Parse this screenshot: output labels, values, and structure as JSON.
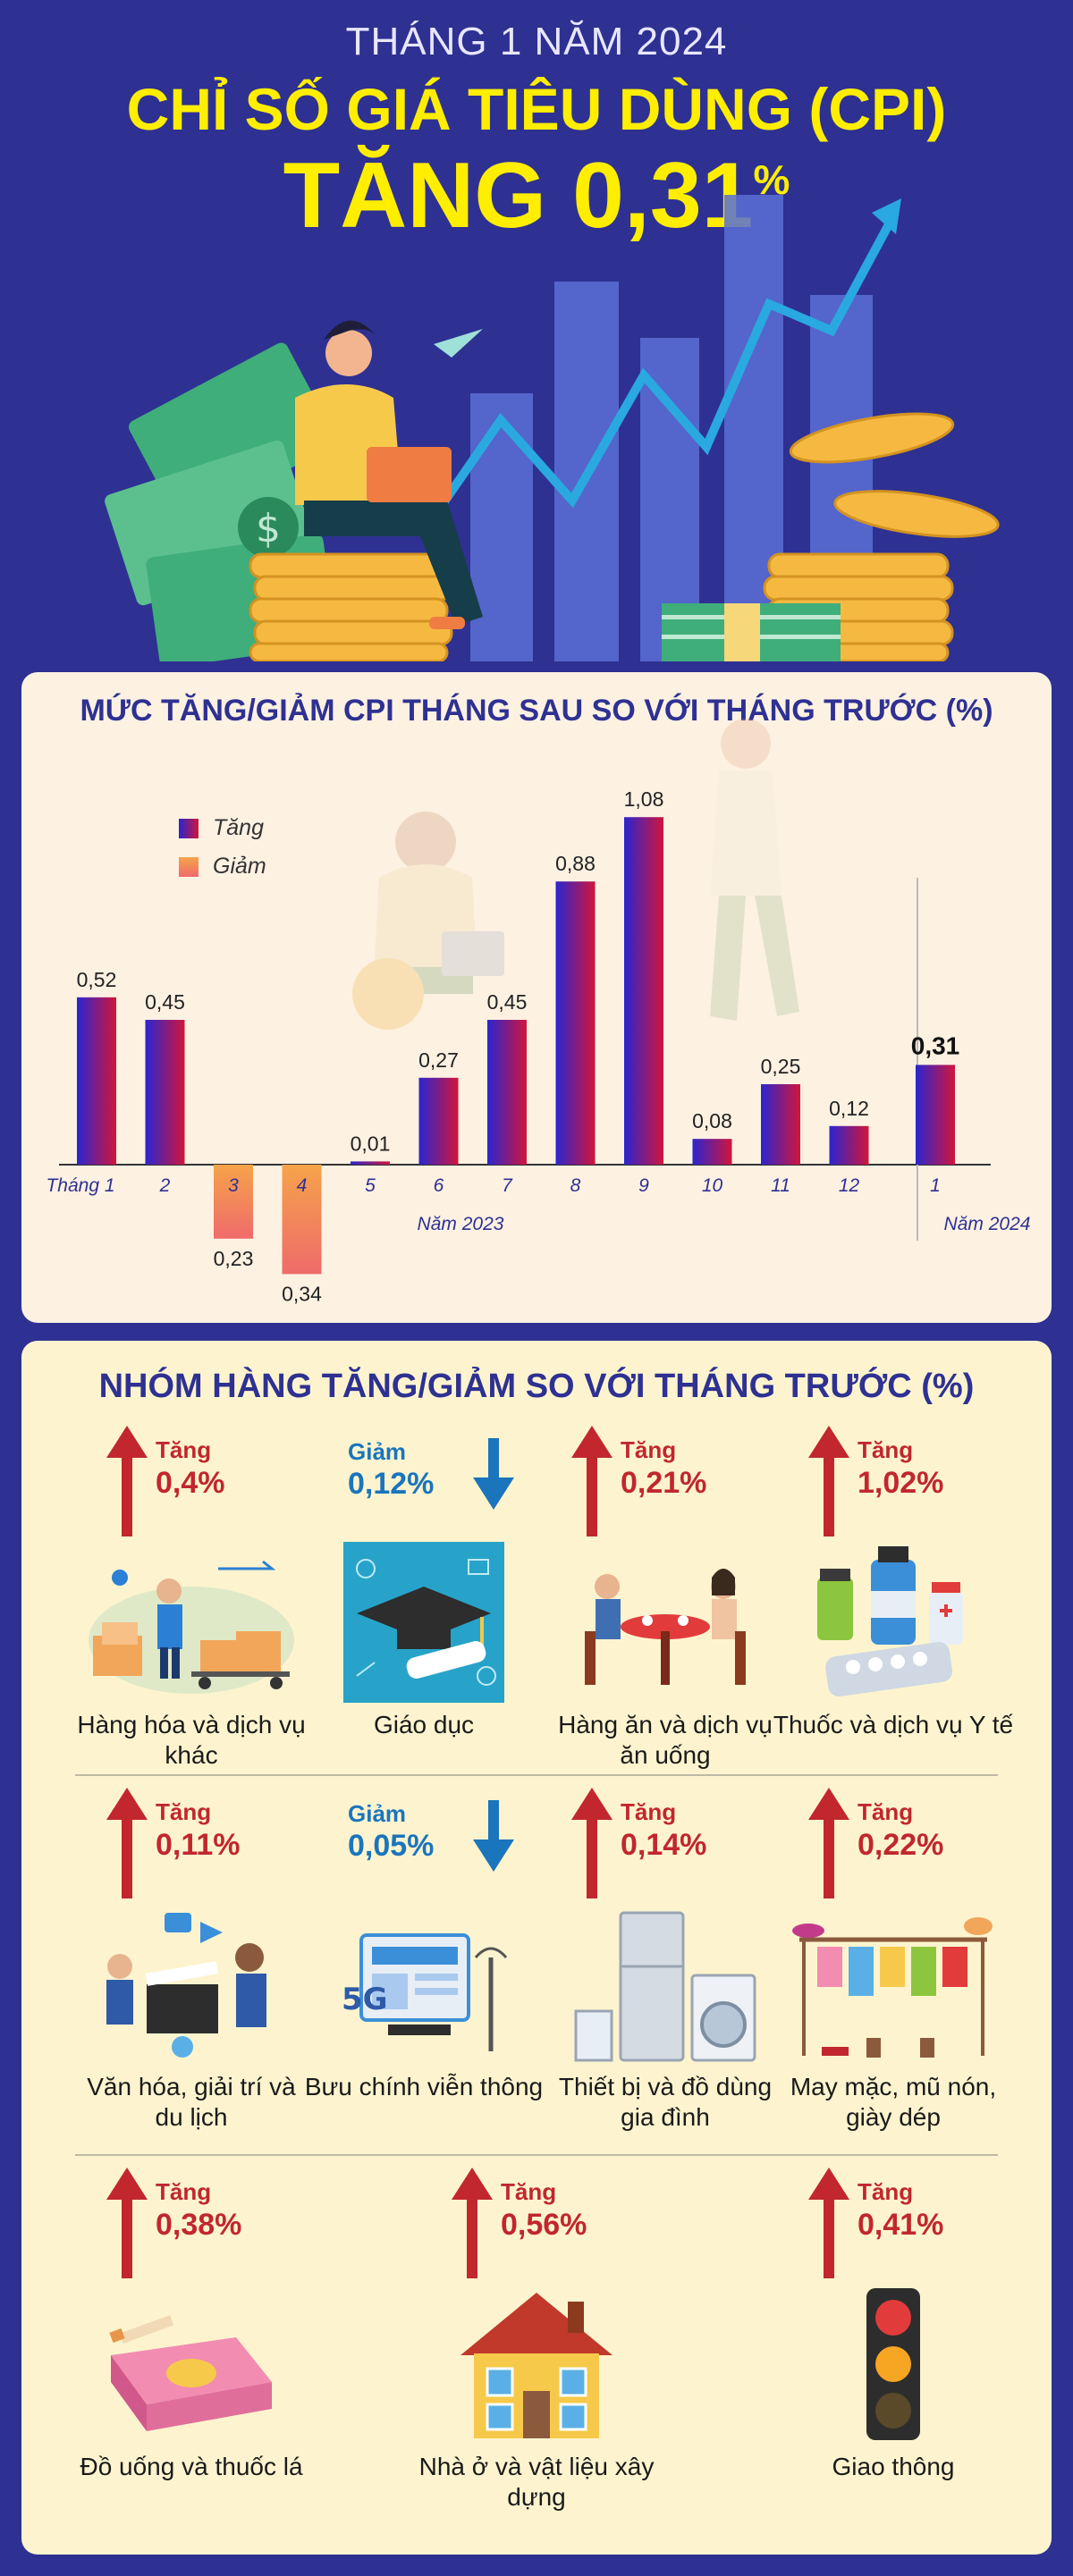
{
  "header": {
    "month_line": "THÁNG 1 NĂM 2024",
    "title_line": "CHỈ SỐ GIÁ TIÊU DÙNG (CPI)",
    "value_line": "TĂNG 0,31",
    "value_unit": "%"
  },
  "chart_section": {
    "title": "MỨC TĂNG/GIẢM CPI THÁNG SAU SO VỚI THÁNG TRƯỚC (%)"
  },
  "chart_data": {
    "type": "bar",
    "title": "MỨC TĂNG/GIẢM CPI THÁNG SAU SO VỚI THÁNG TRƯỚC (%)",
    "categories": [
      "Tháng 1",
      "2",
      "3",
      "4",
      "5",
      "6",
      "7",
      "8",
      "9",
      "10",
      "11",
      "12",
      "1"
    ],
    "values": [
      0.52,
      0.45,
      -0.23,
      -0.34,
      0.01,
      0.27,
      0.45,
      0.88,
      1.08,
      0.08,
      0.25,
      0.12,
      0.31
    ],
    "value_labels": [
      "0,52",
      "0,45",
      "0,23",
      "0,34",
      "0,01",
      "0,27",
      "0,45",
      "0,88",
      "1,08",
      "0,08",
      "0,25",
      "0,12",
      "0,31"
    ],
    "year_labels": [
      "Năm 2023",
      "Năm 2024"
    ],
    "legend": [
      "Tăng",
      "Giảm"
    ],
    "legend_position": "top-left",
    "colors": {
      "increase_start": "#2b25cf",
      "increase_end": "#d1153b",
      "decrease_start": "#f6a34a",
      "decrease_end": "#ef6b6b",
      "highlight_label": "#111111"
    },
    "grid": false
  },
  "groups_section": {
    "title": "NHÓM HÀNG TĂNG/GIẢM SO VỚI THÁNG TRƯỚC (%)",
    "items": [
      {
        "direction": "up",
        "word": "Tăng",
        "value": "0,4%",
        "label": "Hàng hóa và dịch vụ khác",
        "icon": "delivery-boxes-icon"
      },
      {
        "direction": "down",
        "word": "Giảm",
        "value": "0,12%",
        "label": "Giáo dục",
        "icon": "graduation-cap-icon"
      },
      {
        "direction": "up",
        "word": "Tăng",
        "value": "0,21%",
        "label": "Hàng ăn và dịch vụ ăn uống",
        "icon": "dining-table-icon"
      },
      {
        "direction": "up",
        "word": "Tăng",
        "value": "1,02%",
        "label": "Thuốc và dịch vụ Y tế",
        "icon": "medicine-icon"
      },
      {
        "direction": "up",
        "word": "Tăng",
        "value": "0,11%",
        "label": "Văn hóa, giải trí và du lịch",
        "icon": "entertainment-icon"
      },
      {
        "direction": "down",
        "word": "Giảm",
        "value": "0,05%",
        "label": "Bưu chính viễn thông",
        "icon": "telecom-5g-icon"
      },
      {
        "direction": "up",
        "word": "Tăng",
        "value": "0,14%",
        "label": "Thiết bị và đồ dùng gia đình",
        "icon": "home-appliances-icon"
      },
      {
        "direction": "up",
        "word": "Tăng",
        "value": "0,22%",
        "label": "May mặc, mũ nón, giày dép",
        "icon": "clothing-rack-icon"
      },
      {
        "direction": "up",
        "word": "Tăng",
        "value": "0,38%",
        "label": "Đồ uống và thuốc lá",
        "icon": "cigarette-pack-icon"
      },
      {
        "direction": "up",
        "word": "Tăng",
        "value": "0,56%",
        "label": "Nhà ở và vật liệu xây dựng",
        "icon": "house-icon"
      },
      {
        "direction": "up",
        "word": "Tăng",
        "value": "0,41%",
        "label": "Giao thông",
        "icon": "traffic-light-icon"
      }
    ]
  },
  "colors": {
    "background": "#2e3192",
    "accent_yellow": "#ffee00",
    "up_red": "#c1272d",
    "down_blue": "#1b75bc"
  }
}
